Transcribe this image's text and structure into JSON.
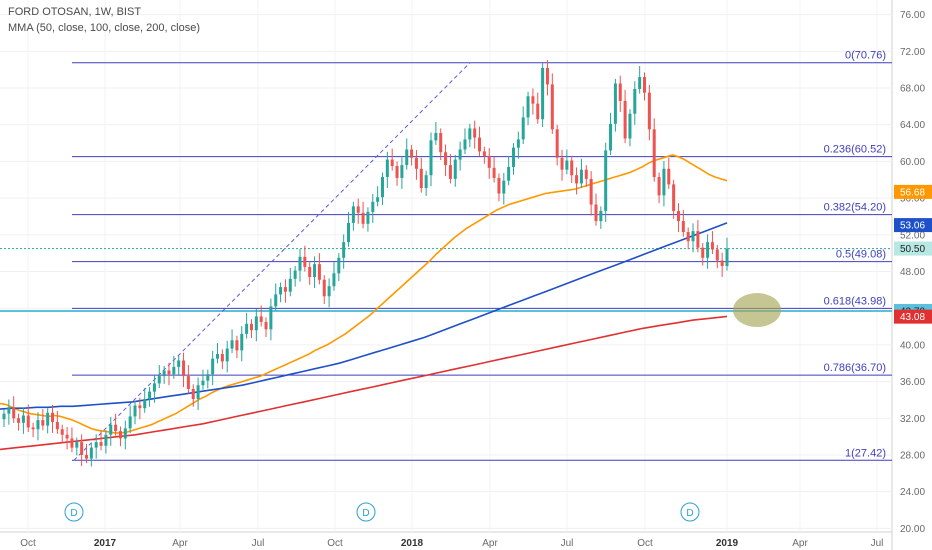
{
  "header": {
    "symbol_line": "FORD OTOSAN, 1W, BIST",
    "indicator_line": "MMA (50, close, 100, close, 200, close)"
  },
  "chart_data": {
    "type": "candlestick",
    "title": "FORD OTOSAN, 1W, BIST",
    "y_axis": {
      "ticks": [
        "76.00",
        "72.00",
        "68.00",
        "64.00",
        "60.00",
        "56.00",
        "52.00",
        "48.00",
        "44.00",
        "40.00",
        "36.00",
        "32.00",
        "28.00",
        "24.00",
        "20.00"
      ],
      "range": [
        19.6,
        77.6
      ],
      "position": "right"
    },
    "x_axis": {
      "ticks": [
        {
          "label": "Oct",
          "bold": false
        },
        {
          "label": "2017",
          "bold": true
        },
        {
          "label": "Apr",
          "bold": false
        },
        {
          "label": "Jul",
          "bold": false
        },
        {
          "label": "Oct",
          "bold": false
        },
        {
          "label": "2018",
          "bold": true
        },
        {
          "label": "Apr",
          "bold": false
        },
        {
          "label": "Jul",
          "bold": false
        },
        {
          "label": "Oct",
          "bold": false
        },
        {
          "label": "2019",
          "bold": true
        },
        {
          "label": "Apr",
          "bold": false
        },
        {
          "label": "Jul",
          "bold": false
        }
      ]
    },
    "candles_close": [
      32.5,
      33.2,
      32.0,
      31.5,
      32.3,
      31.0,
      30.8,
      31.8,
      31.2,
      32.6,
      31.6,
      30.8,
      30.2,
      29.8,
      28.8,
      29.4,
      28.0,
      27.6,
      28.8,
      29.4,
      29.0,
      30.2,
      31.3,
      30.6,
      29.8,
      30.9,
      32.2,
      33.4,
      33.1,
      34.1,
      34.9,
      35.8,
      36.6,
      37.2,
      36.8,
      37.6,
      38.3,
      36.6,
      35.2,
      34.1,
      35.6,
      36.1,
      36.8,
      38.5,
      39.0,
      38.2,
      39.6,
      40.5,
      39.4,
      41.2,
      42.3,
      41.6,
      43.1,
      42.5,
      41.7,
      44.2,
      45.5,
      46.3,
      45.8,
      47.2,
      48.1,
      49.6,
      48.5,
      47.4,
      48.8,
      47.1,
      45.3,
      46.4,
      47.8,
      49.5,
      51.2,
      53.3,
      55.1,
      54.4,
      53.2,
      54.5,
      55.6,
      56.1,
      58.3,
      60.2,
      59.5,
      58.2,
      59.6,
      61.3,
      60.4,
      59.2,
      57.1,
      58.5,
      62.3,
      63.1,
      61.0,
      59.6,
      58.1,
      60.2,
      61.3,
      62.4,
      63.6,
      62.6,
      61.1,
      60.6,
      59.3,
      58.2,
      56.5,
      57.9,
      59.4,
      61.5,
      62.4,
      64.8,
      67.1,
      66.3,
      64.6,
      70.2,
      68.4,
      63.5,
      60.4,
      59.1,
      60.1,
      58.5,
      57.6,
      59.1,
      58.1,
      55.3,
      53.5,
      54.6,
      61.2,
      64.1,
      68.5,
      66.6,
      62.5,
      65.2,
      67.9,
      69.2,
      67.5,
      63.5,
      58.3,
      56.3,
      59.2,
      57.5,
      54.6,
      53.5,
      52.3,
      51.3,
      52.4,
      50.6,
      49.5,
      51.2,
      50.4,
      49.2,
      48.6,
      50.5
    ],
    "fibonacci_levels": [
      {
        "ratio": "0",
        "value": 70.76,
        "label": "0(70.76)"
      },
      {
        "ratio": "0.236",
        "value": 60.52,
        "label": "0.236(60.52)"
      },
      {
        "ratio": "0.382",
        "value": 54.2,
        "label": "0.382(54.20)"
      },
      {
        "ratio": "0.5",
        "value": 49.08,
        "label": "0.5(49.08)"
      },
      {
        "ratio": "0.618",
        "value": 43.98,
        "label": "0.618(43.98)"
      },
      {
        "ratio": "0.786",
        "value": 36.7,
        "label": "0.786(36.70)"
      },
      {
        "ratio": "1",
        "value": 27.42,
        "label": "1(27.42)"
      }
    ],
    "moving_averages": [
      {
        "period": 50,
        "color": "#ff9800",
        "values": [
          33.6,
          33.5,
          33.2,
          32.9,
          32.7,
          32.5,
          32.4,
          32.3,
          32.2,
          32.3,
          32.2,
          32.0,
          31.8,
          31.5,
          31.2,
          30.9,
          30.7,
          30.6,
          30.5,
          30.4,
          30.4,
          30.5,
          30.7,
          30.9,
          31.1,
          31.3,
          31.6,
          31.9,
          32.2,
          32.5,
          32.9,
          33.3,
          33.7,
          34.1,
          34.4,
          34.8,
          35.1,
          35.4,
          35.6,
          35.8,
          36.0,
          36.2,
          36.4,
          36.6,
          36.9,
          37.2,
          37.5,
          37.8,
          38.1,
          38.4,
          38.7,
          39.0,
          39.4,
          39.7,
          40.0,
          40.4,
          40.8,
          41.2,
          41.7,
          42.2,
          42.7,
          43.2,
          43.8,
          44.4,
          45.0,
          45.6,
          46.2,
          46.8,
          47.4,
          48.0,
          48.6,
          49.2,
          49.9,
          50.5,
          51.1,
          51.7,
          52.2,
          52.7,
          53.1,
          53.5,
          53.9,
          54.3,
          54.7,
          55.0,
          55.3,
          55.5,
          55.7,
          55.9,
          56.1,
          56.3,
          56.5,
          56.6,
          56.7,
          56.8,
          56.9,
          57.0,
          57.2,
          57.4,
          57.6,
          57.8,
          58.0,
          58.2,
          58.4,
          58.6,
          58.8,
          59.1,
          59.4,
          59.8,
          60.1,
          60.3,
          60.5,
          60.7,
          60.5,
          60.2,
          59.8,
          59.4,
          59.0,
          58.6,
          58.3,
          58.1,
          57.9
        ],
        "x_start_index": 0
      },
      {
        "period": 100,
        "color": "#1e50c8",
        "values": [
          33.0,
          33.1,
          33.1,
          33.2,
          33.2,
          33.3,
          33.3,
          33.4,
          33.5,
          33.6,
          33.7,
          33.8,
          34.0,
          34.2,
          34.4,
          34.6,
          34.8,
          35.0,
          35.2,
          35.4,
          35.6,
          35.9,
          36.2,
          36.5,
          36.8,
          37.1,
          37.4,
          37.7,
          38.0,
          38.4,
          38.8,
          39.2,
          39.6,
          40.0,
          40.4,
          40.8,
          41.3,
          41.8,
          42.3,
          42.8,
          43.3,
          43.8,
          44.3,
          44.8,
          45.3,
          45.8,
          46.3,
          46.8,
          47.3,
          47.8,
          48.3,
          48.8,
          49.3,
          49.8,
          50.3,
          50.8,
          51.3,
          51.8,
          52.3,
          52.8,
          53.3
        ],
        "x_start_index": 0
      },
      {
        "period": 200,
        "color": "#e03030",
        "values": [
          28.6,
          28.8,
          29.0,
          29.2,
          29.4,
          29.6,
          29.8,
          30.0,
          30.2,
          30.5,
          30.8,
          31.1,
          31.4,
          31.8,
          32.2,
          32.6,
          33.0,
          33.4,
          33.8,
          34.2,
          34.6,
          35.0,
          35.4,
          35.8,
          36.2,
          36.6,
          37.0,
          37.4,
          37.8,
          38.2,
          38.6,
          39.0,
          39.4,
          39.8,
          40.2,
          40.6,
          41.0,
          41.4,
          41.8,
          42.1,
          42.4,
          42.7,
          42.9,
          43.1
        ],
        "x_start_index": 0
      }
    ],
    "price_badges": [
      {
        "value": "56.68",
        "color": "#ff9800",
        "text_dark": false
      },
      {
        "value": "53.06",
        "color": "#1e50c8",
        "text_dark": false
      },
      {
        "value": "50.50",
        "color": "#b8e8e4",
        "text_dark": true
      },
      {
        "value": "43.70",
        "color": "#5bc0de",
        "text_dark": true
      },
      {
        "value": "43.08",
        "color": "#e03030",
        "text_dark": false
      }
    ],
    "dividend_markers": [
      "D",
      "D",
      "D"
    ],
    "colors": {
      "up": "#26a69a",
      "down": "#ef5350",
      "fib": "#3f3fbf",
      "trend": "#5b5be0",
      "ellipse": "#a8a85a"
    }
  }
}
